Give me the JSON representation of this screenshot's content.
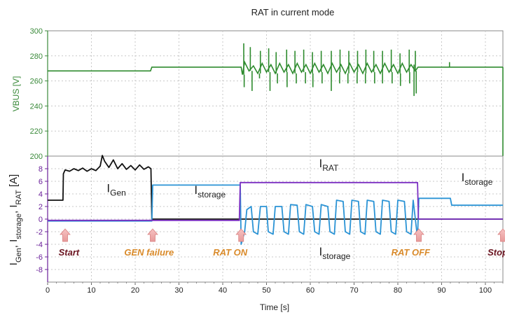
{
  "chart_data": {
    "type": "line",
    "title": "RAT in current mode",
    "xlabel": "Time [s]",
    "xlim": [
      0,
      104
    ],
    "x_ticks": [
      "0",
      "10",
      "20",
      "30",
      "40",
      "50",
      "60",
      "70",
      "80",
      "90",
      "100"
    ],
    "top_panel": {
      "ylabel": "VBUS [V]",
      "ylim": [
        200,
        300
      ],
      "y_ticks": [
        "300",
        "280",
        "260",
        "240",
        "220",
        "200"
      ],
      "color": "#2e8b2e",
      "series": [
        {
          "points": [
            [
              0,
              268
            ],
            [
              23.5,
              268
            ],
            [
              23.8,
              271
            ],
            [
              44.2,
              271
            ],
            [
              44.5,
              265
            ],
            [
              45,
              275
            ],
            [
              46,
              268
            ],
            [
              47,
              272
            ],
            [
              48,
              266
            ],
            [
              49,
              274
            ],
            [
              50,
              267
            ],
            [
              51,
              273
            ],
            [
              52,
              266
            ],
            [
              53,
              274
            ],
            [
              54,
              267
            ],
            [
              55,
              273
            ],
            [
              56,
              266
            ],
            [
              57,
              274
            ],
            [
              58,
              267
            ],
            [
              59,
              273
            ],
            [
              60,
              266
            ],
            [
              61,
              274
            ],
            [
              62,
              267
            ],
            [
              63,
              273
            ],
            [
              64,
              266
            ],
            [
              65,
              274
            ],
            [
              66,
              267
            ],
            [
              67,
              273
            ],
            [
              68,
              266
            ],
            [
              69,
              274
            ],
            [
              70,
              267
            ],
            [
              71,
              273
            ],
            [
              72,
              266
            ],
            [
              73,
              274
            ],
            [
              74,
              267
            ],
            [
              75,
              273
            ],
            [
              76,
              266
            ],
            [
              77,
              274
            ],
            [
              78,
              267
            ],
            [
              79,
              273
            ],
            [
              80,
              266
            ],
            [
              81,
              274
            ],
            [
              82,
              267
            ],
            [
              83,
              273
            ],
            [
              84,
              268
            ],
            [
              84.6,
              271
            ],
            [
              104,
              271
            ]
          ],
          "spikes_up": [
            [
              44.8,
              290
            ],
            [
              46.3,
              287
            ],
            [
              48.6,
              284
            ],
            [
              50.5,
              286
            ],
            [
              52.2,
              283
            ],
            [
              54.6,
              285
            ],
            [
              56.5,
              284
            ],
            [
              58.5,
              285
            ],
            [
              60.5,
              283
            ],
            [
              62.5,
              284
            ],
            [
              64.8,
              284
            ],
            [
              66.8,
              285
            ],
            [
              68.8,
              284
            ],
            [
              70.8,
              284
            ],
            [
              72.7,
              285
            ],
            [
              74.5,
              284
            ],
            [
              76.5,
              284
            ],
            [
              78.5,
              285
            ],
            [
              80.5,
              282
            ],
            [
              82.6,
              285
            ],
            [
              84,
              284
            ],
            [
              91.8,
              275
            ]
          ],
          "spikes_down": [
            [
              44.9,
              255
            ],
            [
              46.7,
              252
            ],
            [
              48.4,
              262
            ],
            [
              50.8,
              252
            ],
            [
              52.5,
              258
            ],
            [
              54.7,
              255
            ],
            [
              56.8,
              258
            ],
            [
              58.9,
              258
            ],
            [
              60.6,
              255
            ],
            [
              62.7,
              258
            ],
            [
              64.8,
              252
            ],
            [
              66.7,
              258
            ],
            [
              68.6,
              258
            ],
            [
              70.7,
              258
            ],
            [
              72.6,
              258
            ],
            [
              74.7,
              258
            ],
            [
              76.5,
              258
            ],
            [
              78.7,
              258
            ],
            [
              80.6,
              256
            ],
            [
              82.7,
              258
            ],
            [
              83.7,
              248
            ],
            [
              84.2,
              250
            ],
            [
              104,
              200
            ]
          ]
        }
      ]
    },
    "bottom_panel": {
      "ylabel_parts": [
        "I",
        "Gen",
        ", I",
        "storage",
        ", I",
        "RAT",
        " [A]"
      ],
      "ylim": [
        -10,
        10
      ],
      "y_ticks": [
        "8",
        "6",
        "4",
        "2",
        "0",
        "-2",
        "-4",
        "-6",
        "-8"
      ],
      "series": [
        {
          "name": "Gen",
          "color": "#111111",
          "points": [
            [
              0,
              3
            ],
            [
              3.5,
              3
            ],
            [
              3.6,
              7.2
            ],
            [
              4,
              7.8
            ],
            [
              5,
              7.6
            ],
            [
              6,
              8
            ],
            [
              7,
              7.7
            ],
            [
              8,
              8.1
            ],
            [
              9,
              7.6
            ],
            [
              10,
              8
            ],
            [
              11,
              7.7
            ],
            [
              12,
              8.4
            ],
            [
              12.5,
              10.1
            ],
            [
              13,
              9.2
            ],
            [
              14,
              8.2
            ],
            [
              15,
              9.4
            ],
            [
              16,
              8
            ],
            [
              17,
              8.8
            ],
            [
              18,
              7.9
            ],
            [
              19,
              8.5
            ],
            [
              20,
              7.8
            ],
            [
              21,
              8.6
            ],
            [
              22,
              7.9
            ],
            [
              23,
              8.3
            ],
            [
              23.6,
              8
            ],
            [
              23.8,
              -0.2
            ],
            [
              24,
              0
            ],
            [
              104,
              0
            ]
          ]
        },
        {
          "name": "storage",
          "color": "#2a93d5",
          "points": [
            [
              0,
              -0.3
            ],
            [
              23.8,
              -0.3
            ],
            [
              24,
              5.4
            ],
            [
              44,
              5.4
            ],
            [
              44.2,
              -4
            ],
            [
              45,
              -2
            ],
            [
              45.5,
              1.5
            ],
            [
              46.5,
              2
            ],
            [
              47,
              -2
            ],
            [
              48,
              -2.4
            ],
            [
              48.6,
              2
            ],
            [
              50,
              2
            ],
            [
              50.4,
              -2
            ],
            [
              51.5,
              -2.4
            ],
            [
              52,
              2
            ],
            [
              53.5,
              2
            ],
            [
              54,
              -2
            ],
            [
              55,
              -2.4
            ],
            [
              55.5,
              2.3
            ],
            [
              57,
              2.2
            ],
            [
              57.5,
              -2
            ],
            [
              58.5,
              -2.4
            ],
            [
              59,
              2.3
            ],
            [
              60.5,
              2
            ],
            [
              61,
              -2
            ],
            [
              62,
              -2.4
            ],
            [
              62.5,
              2.3
            ],
            [
              64,
              2
            ],
            [
              64.5,
              -2
            ],
            [
              65.5,
              -2.4
            ],
            [
              66,
              3
            ],
            [
              67.5,
              2.8
            ],
            [
              68,
              -2
            ],
            [
              69,
              -2.4
            ],
            [
              69.5,
              3
            ],
            [
              71,
              2.8
            ],
            [
              71.5,
              -2
            ],
            [
              72.5,
              -2.4
            ],
            [
              73,
              3
            ],
            [
              74.5,
              2.8
            ],
            [
              75,
              -2
            ],
            [
              76,
              -2.4
            ],
            [
              76.5,
              3
            ],
            [
              78,
              2.8
            ],
            [
              78.5,
              -2
            ],
            [
              79.5,
              -2.4
            ],
            [
              80,
              3
            ],
            [
              81.5,
              2.8
            ],
            [
              82,
              -2
            ],
            [
              83,
              -2.4
            ],
            [
              83.5,
              3
            ],
            [
              84.5,
              -3
            ],
            [
              84.8,
              3.3
            ],
            [
              92,
              3.3
            ],
            [
              92.3,
              2.2
            ],
            [
              104,
              2.2
            ]
          ]
        },
        {
          "name": "RAT",
          "color": "#7b2fc2",
          "points": [
            [
              0,
              -0.2
            ],
            [
              43.8,
              -0.2
            ],
            [
              44,
              5.8
            ],
            [
              84.5,
              5.8
            ],
            [
              84.7,
              0
            ],
            [
              104,
              0
            ]
          ]
        }
      ],
      "annotations": [
        {
          "main": "I",
          "sub": "Gen",
          "x": 13.5,
          "y": 4.3
        },
        {
          "main": "I",
          "sub": "storage",
          "x": 33.5,
          "y": 4.0
        },
        {
          "main": "I",
          "sub": "RAT",
          "x": 62,
          "y": 8.2
        },
        {
          "main": "I",
          "sub": "storage",
          "x": 62,
          "y": -5.8
        },
        {
          "main": "I",
          "sub": "storage",
          "x": 94.5,
          "y": 6.0
        }
      ],
      "events": [
        {
          "label": "Start",
          "x": 4,
          "text_x": 2.5,
          "color": "#6a1420"
        },
        {
          "label": "GEN failure",
          "x": 24,
          "text_x": 17.5,
          "color": "#d98a2a"
        },
        {
          "label": "RAT ON",
          "x": 44.2,
          "text_x": 37.8,
          "color": "#d98a2a"
        },
        {
          "label": "RAT OFF",
          "x": 84.8,
          "text_x": 78.5,
          "color": "#d98a2a"
        },
        {
          "label": "Stop",
          "x": 104,
          "text_x": 100.5,
          "color": "#6a1420"
        }
      ]
    }
  }
}
